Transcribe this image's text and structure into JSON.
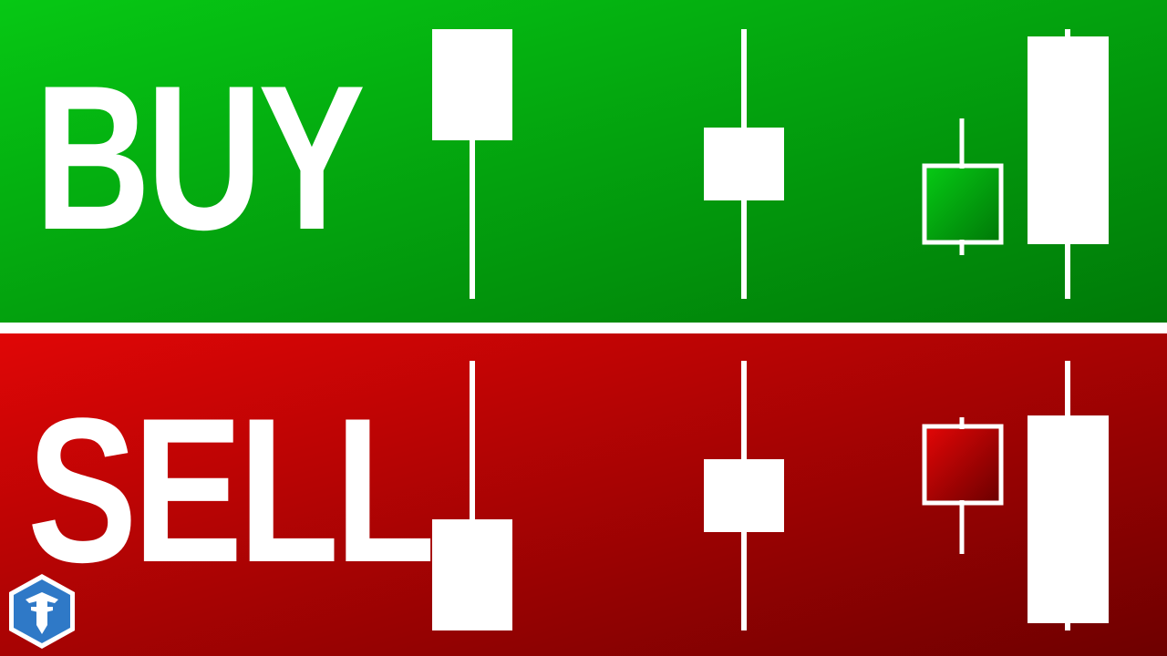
{
  "colors": {
    "buy_gradient_start": "#06c814",
    "buy_gradient_end": "#007a08",
    "sell_gradient_start": "#e00606",
    "sell_gradient_end": "#6e0000",
    "candle": "#ffffff",
    "divider": "#ffffff",
    "logo_fill": "#2f79c7"
  },
  "buy": {
    "label": "BUY",
    "candles": [
      "hammer",
      "spinning-top",
      "bullish-engulfing"
    ]
  },
  "sell": {
    "label": "SELL",
    "candles": [
      "shooting-star",
      "spinning-top",
      "bearish-engulfing"
    ]
  },
  "logo": {
    "icon": "shield-helmet-icon"
  }
}
